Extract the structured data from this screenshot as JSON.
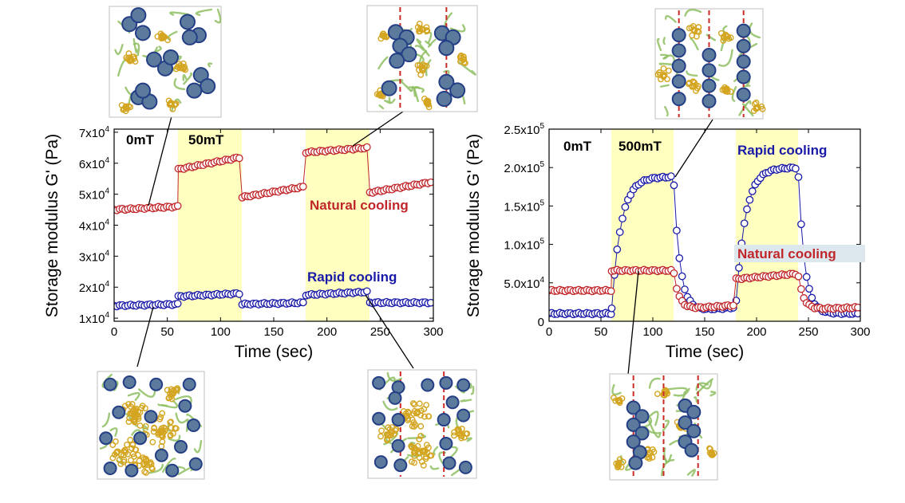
{
  "colors": {
    "field_band": "#ffffc0",
    "natural": "#c0262a",
    "rapid": "#1a1aa8",
    "particle": "#5c7b9c",
    "particle_edge": "#243f86",
    "cluster": "#d4a520",
    "polymer": "#8ebe62",
    "field_line": "#cc2a24",
    "label_highlight": "#dde8ee"
  },
  "chart_data": [
    {
      "type": "scatter",
      "xlabel": "Time (sec)",
      "ylabel": "Storage modulus G' (Pa)",
      "x_ticks": [
        "0",
        "50",
        "100",
        "150",
        "200",
        "250",
        "300"
      ],
      "y_ticks": [
        {
          "mant": "1x10",
          "exp": "4",
          "v": 10000
        },
        {
          "mant": "2x10",
          "exp": "4",
          "v": 20000
        },
        {
          "mant": "3x10",
          "exp": "4",
          "v": 30000
        },
        {
          "mant": "4x10",
          "exp": "4",
          "v": 40000
        },
        {
          "mant": "5x10",
          "exp": "4",
          "v": 50000
        },
        {
          "mant": "6x10",
          "exp": "4",
          "v": 60000
        },
        {
          "mant": "7x10",
          "exp": "4",
          "v": 70000
        }
      ],
      "xlim": [
        0,
        300
      ],
      "ylim": [
        9000,
        71000
      ],
      "field_off_label": "0mT",
      "field_on_label": "50mT",
      "field_on_intervals": [
        [
          60,
          120
        ],
        [
          180,
          240
        ]
      ],
      "series": [
        {
          "name": "Natural cooling",
          "color": "natural",
          "segments": [
            {
              "x0": 0,
              "x1": 60,
              "y0": 45000,
              "y1": 46000
            },
            {
              "x0": 60,
              "x1": 120,
              "y0": 58000,
              "y1": 62000
            },
            {
              "x0": 120,
              "x1": 180,
              "y0": 49000,
              "y1": 52500
            },
            {
              "x0": 180,
              "x1": 240,
              "y0": 63500,
              "y1": 65000
            },
            {
              "x0": 240,
              "x1": 300,
              "y0": 50500,
              "y1": 54000
            }
          ]
        },
        {
          "name": "Rapid cooling",
          "color": "rapid",
          "segments": [
            {
              "x0": 0,
              "x1": 60,
              "y0": 14000,
              "y1": 14500
            },
            {
              "x0": 60,
              "x1": 120,
              "y0": 17000,
              "y1": 18000
            },
            {
              "x0": 120,
              "x1": 180,
              "y0": 14500,
              "y1": 15000
            },
            {
              "x0": 180,
              "x1": 240,
              "y0": 17500,
              "y1": 18500
            },
            {
              "x0": 240,
              "x1": 300,
              "y0": 15000,
              "y1": 15000
            }
          ]
        }
      ]
    },
    {
      "type": "scatter",
      "xlabel": "Time (sec)",
      "ylabel": "Storage modulus G' (Pa)",
      "x_ticks": [
        "0",
        "50",
        "100",
        "150",
        "200",
        "250",
        "300"
      ],
      "y_ticks": [
        {
          "mant": "0",
          "exp": "",
          "v": 0
        },
        {
          "mant": "5.0x10",
          "exp": "4",
          "v": 50000
        },
        {
          "mant": "1.0x10",
          "exp": "5",
          "v": 100000
        },
        {
          "mant": "1.5x10",
          "exp": "5",
          "v": 150000
        },
        {
          "mant": "2.0x10",
          "exp": "5",
          "v": 200000
        },
        {
          "mant": "2.5x10",
          "exp": "5",
          "v": 250000
        }
      ],
      "xlim": [
        0,
        300
      ],
      "ylim": [
        0,
        250000
      ],
      "field_off_label": "0mT",
      "field_on_label": "500mT",
      "field_on_intervals": [
        [
          60,
          120
        ],
        [
          180,
          240
        ]
      ],
      "series": [
        {
          "name": "Rapid cooling",
          "color": "rapid",
          "segments": [
            {
              "x0": 0,
              "x1": 60,
              "y0": 10000,
              "y1": 10000
            },
            {
              "x0": 60,
              "x1": 120,
              "rise_from": 10000,
              "rise_to": 188000,
              "tau": 9
            },
            {
              "x0": 120,
              "x1": 180,
              "decay_from": 188000,
              "decay_to": 12000,
              "decay_end": 18000,
              "tau": 6
            },
            {
              "x0": 180,
              "x1": 240,
              "rise_from": 18000,
              "rise_to": 200000,
              "tau": 9
            },
            {
              "x0": 240,
              "x1": 300,
              "decay_from": 200000,
              "decay_to": 10000,
              "decay_end": 10000,
              "tau": 6
            }
          ]
        },
        {
          "name": "Natural cooling",
          "color": "natural",
          "segments": [
            {
              "x0": 0,
              "x1": 60,
              "y0": 40000,
              "y1": 40000
            },
            {
              "x0": 60,
              "x1": 120,
              "y0": 66000,
              "y1": 66000
            },
            {
              "x0": 120,
              "x1": 180,
              "decay_from": 66000,
              "decay_to": 15000,
              "decay_end": 21000,
              "tau": 5
            },
            {
              "x0": 180,
              "x1": 240,
              "y0": 55000,
              "y1": 62000
            },
            {
              "x0": 240,
              "x1": 300,
              "decay_from": 62000,
              "decay_to": 15000,
              "decay_end": 18000,
              "tau": 5
            }
          ]
        }
      ]
    }
  ]
}
